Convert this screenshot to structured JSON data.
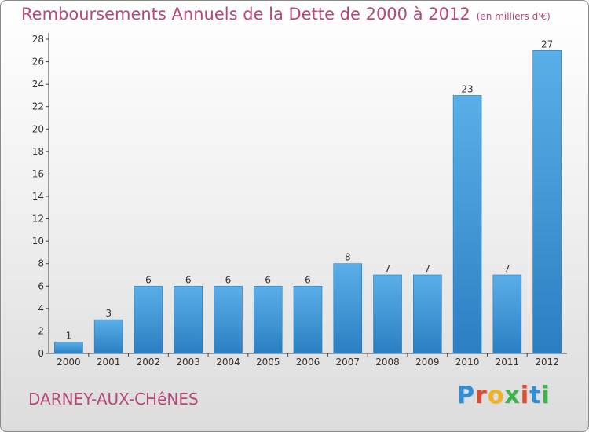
{
  "title": "Remboursements Annuels de la Dette de 2000 à 2012",
  "unit": "(en milliers d'€)",
  "commune": "DARNEY-AUX-CHêNES",
  "brand": {
    "letters": [
      "P",
      "r",
      "o",
      "x",
      "i",
      "t",
      "i"
    ],
    "colors": [
      "#2f8fd8",
      "#e04a2f",
      "#f2b21b",
      "#3bb54a",
      "#e04a2f",
      "#2f8fd8",
      "#3bb54a"
    ]
  },
  "colors": {
    "bar_top": "#5aafe8",
    "bar_bottom": "#2a7fc2",
    "axis": "#444444",
    "grid": "#bbbbbb",
    "title": "#b5487b"
  },
  "chart_data": {
    "type": "bar",
    "title": "Remboursements Annuels de la Dette de 2000 à 2012",
    "xlabel": "",
    "ylabel": "",
    "categories": [
      "2000",
      "2001",
      "2002",
      "2003",
      "2004",
      "2005",
      "2006",
      "2007",
      "2008",
      "2009",
      "2010",
      "2011",
      "2012"
    ],
    "values": [
      1,
      3,
      6,
      6,
      6,
      6,
      6,
      8,
      7,
      7,
      23,
      7,
      27
    ],
    "data_labels": [
      "1",
      "3",
      "6",
      "6",
      "6",
      "6",
      "6",
      "8",
      "7",
      "7",
      "23",
      "7",
      "27"
    ],
    "ylim": [
      0,
      28
    ],
    "yticks": [
      0,
      2,
      4,
      6,
      8,
      10,
      12,
      14,
      16,
      18,
      20,
      22,
      24,
      26,
      28
    ],
    "ytick_labels": [
      "0",
      "2",
      "4",
      "6",
      "8",
      "10",
      "12",
      "14",
      "16",
      "18",
      "20",
      "22",
      "24",
      "26",
      "28"
    ],
    "grid": false,
    "legend": "none"
  }
}
